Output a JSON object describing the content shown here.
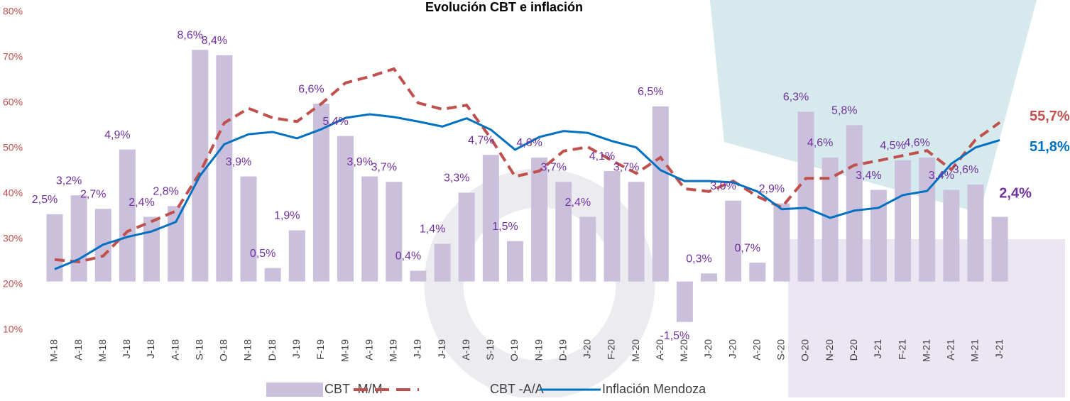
{
  "chart_data": {
    "type": "bar_line",
    "title": "Evolución CBT e inflación",
    "categories": [
      "M-18",
      "A-18",
      "M-18",
      "J-18",
      "J-18",
      "A-18",
      "S-18",
      "O-18",
      "N-18",
      "D-18",
      "J-19",
      "F-19",
      "M-19",
      "A-19",
      "M-19",
      "J-19",
      "J-19",
      "A-19",
      "S-19",
      "O-19",
      "N-19",
      "D-19",
      "J-20",
      "F-20",
      "M-20",
      "A-20",
      "M-20",
      "J-20",
      "J-20",
      "A-20",
      "S-20",
      "O-20",
      "N-20",
      "D-20",
      "J-21",
      "F-21",
      "M-21",
      "A-21",
      "M-21",
      "J-21"
    ],
    "ylim": [
      10,
      80
    ],
    "yticks": [
      {
        "value": 10,
        "label": "10%"
      },
      {
        "value": 20,
        "label": "20%"
      },
      {
        "value": 30,
        "label": "30%"
      },
      {
        "value": 40,
        "label": "40%"
      },
      {
        "value": 50,
        "label": "50%"
      },
      {
        "value": 60,
        "label": "60%"
      },
      {
        "value": 70,
        "label": "70%"
      },
      {
        "value": 80,
        "label": "80%"
      }
    ],
    "y2lim": [
      -1.8,
      10
    ],
    "series": [
      {
        "name": "CBT -M/M-",
        "kind": "bar",
        "axis": "y2",
        "color": "#cbc0dc",
        "label_color": "#7030a0",
        "values": [
          2.5,
          3.2,
          2.7,
          4.9,
          2.4,
          2.8,
          8.6,
          8.4,
          3.9,
          0.5,
          1.9,
          6.6,
          5.4,
          3.9,
          3.7,
          0.4,
          1.4,
          3.3,
          4.7,
          1.5,
          4.6,
          3.7,
          2.4,
          4.1,
          3.7,
          6.5,
          -1.5,
          0.3,
          3.0,
          0.7,
          2.9,
          6.3,
          4.6,
          5.8,
          3.4,
          4.5,
          4.6,
          3.4,
          3.6,
          2.4
        ],
        "value_labels": [
          "2,5%",
          "3,2%",
          "2,7%",
          "4,9%",
          "2,4%",
          "2,8%",
          "8,6%",
          "8,4%",
          "3,9%",
          "0,5%",
          "1,9%",
          "6,6%",
          "5,4%",
          "3,9%",
          "3,7%",
          "0,4%",
          "1,4%",
          "3,3%",
          "4,7%",
          "1,5%",
          "4,6%",
          "3,7%",
          "2,4%",
          "4,1%",
          "3,7%",
          "6,5%",
          "-1,5%",
          "0,3%",
          "3,0%",
          "0,7%",
          "2,9%",
          "6,3%",
          "4,6%",
          "5,8%",
          "3,4%",
          "4,5%",
          "4,6%",
          "3,4%",
          "3,6%",
          "2,4%"
        ]
      },
      {
        "name": "CBT -A/A-",
        "kind": "line",
        "dashed": true,
        "color": "#c0504d",
        "end_label": "55,7%",
        "values": [
          25.5,
          25,
          26.3,
          31.7,
          33.9,
          36.2,
          44.7,
          55.6,
          58.8,
          56.7,
          55.9,
          59.8,
          64.4,
          65.8,
          67.5,
          60,
          58.6,
          59.5,
          52.2,
          43.8,
          45,
          49.4,
          50.3,
          47.3,
          44.5,
          48,
          41.1,
          40.5,
          42.8,
          39.4,
          37,
          43.4,
          43.4,
          46.3,
          47.3,
          48.4,
          49.5,
          45.3,
          51.9,
          55.7
        ]
      },
      {
        "name": "Inflación Mendoza",
        "kind": "line",
        "dashed": false,
        "color": "#0070c0",
        "end_label": "51,8%",
        "values": [
          23.4,
          25.6,
          28.8,
          30.5,
          31.7,
          33.8,
          44,
          50.9,
          53.1,
          53.6,
          52.2,
          54.2,
          56.7,
          57.5,
          56.9,
          55.9,
          54.8,
          56.6,
          54.1,
          49.7,
          52.5,
          53.8,
          53.4,
          51.6,
          50.2,
          45.2,
          42.8,
          42.8,
          42.5,
          40.5,
          36.6,
          36.9,
          34.7,
          36.3,
          36.9,
          39.7,
          40.6,
          46.6,
          50.2,
          51.8
        ]
      }
    ]
  }
}
